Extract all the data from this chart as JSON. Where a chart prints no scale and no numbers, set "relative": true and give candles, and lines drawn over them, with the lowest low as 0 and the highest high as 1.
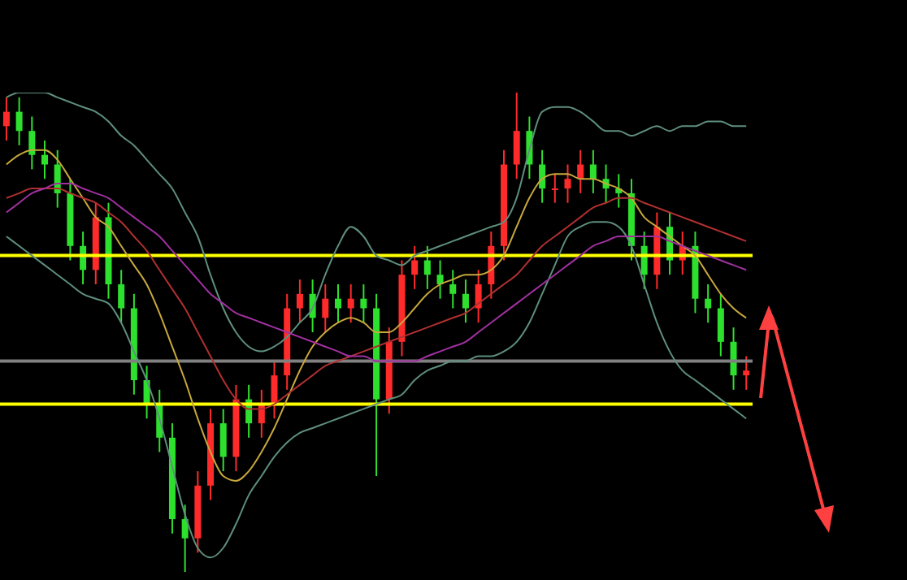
{
  "chart_data": {
    "type": "candlestick",
    "relative": true,
    "categories": [
      null,
      null,
      null,
      null,
      null,
      null,
      null,
      null,
      null,
      null,
      null,
      null,
      null,
      null,
      null,
      null,
      null,
      null,
      null,
      null,
      null,
      null,
      null,
      null,
      null,
      null,
      null,
      null,
      null,
      null,
      null,
      null,
      null,
      null,
      null,
      null,
      null,
      null,
      null,
      null,
      null,
      null,
      null,
      null,
      null,
      null,
      null,
      null,
      null,
      null,
      null,
      null,
      null,
      null,
      null,
      null,
      null,
      null,
      null
    ],
    "ohlc": [
      [
        0.93,
        0.99,
        0.9,
        0.96
      ],
      [
        0.96,
        0.99,
        0.89,
        0.92
      ],
      [
        0.92,
        0.95,
        0.84,
        0.87
      ],
      [
        0.87,
        0.9,
        0.82,
        0.85
      ],
      [
        0.85,
        0.88,
        0.76,
        0.79
      ],
      [
        0.79,
        0.82,
        0.65,
        0.68
      ],
      [
        0.68,
        0.71,
        0.6,
        0.63
      ],
      [
        0.63,
        0.77,
        0.6,
        0.74
      ],
      [
        0.74,
        0.77,
        0.57,
        0.6
      ],
      [
        0.6,
        0.63,
        0.52,
        0.55
      ],
      [
        0.55,
        0.58,
        0.37,
        0.4
      ],
      [
        0.4,
        0.43,
        0.32,
        0.35
      ],
      [
        0.35,
        0.38,
        0.25,
        0.28
      ],
      [
        0.28,
        0.31,
        0.08,
        0.11
      ],
      [
        0.11,
        0.14,
        0,
        0.07
      ],
      [
        0.07,
        0.21,
        0.04,
        0.18
      ],
      [
        0.18,
        0.34,
        0.15,
        0.31
      ],
      [
        0.31,
        0.34,
        0.21,
        0.24
      ],
      [
        0.24,
        0.39,
        0.21,
        0.36
      ],
      [
        0.36,
        0.39,
        0.28,
        0.31
      ],
      [
        0.31,
        0.38,
        0.28,
        0.35
      ],
      [
        0.35,
        0.44,
        0.32,
        0.41
      ],
      [
        0.41,
        0.58,
        0.38,
        0.55
      ],
      [
        0.55,
        0.61,
        0.52,
        0.58
      ],
      [
        0.58,
        0.61,
        0.5,
        0.53
      ],
      [
        0.53,
        0.6,
        0.5,
        0.57
      ],
      [
        0.57,
        0.6,
        0.52,
        0.55
      ],
      [
        0.55,
        0.6,
        0.52,
        0.57
      ],
      [
        0.57,
        0.6,
        0.52,
        0.55
      ],
      [
        0.55,
        0.58,
        0.2,
        0.36
      ],
      [
        0.36,
        0.51,
        0.33,
        0.48
      ],
      [
        0.48,
        0.65,
        0.45,
        0.62
      ],
      [
        0.62,
        0.68,
        0.59,
        0.65
      ],
      [
        0.65,
        0.68,
        0.59,
        0.62
      ],
      [
        0.62,
        0.65,
        0.57,
        0.6
      ],
      [
        0.6,
        0.63,
        0.55,
        0.58
      ],
      [
        0.58,
        0.61,
        0.52,
        0.55
      ],
      [
        0.55,
        0.63,
        0.52,
        0.6
      ],
      [
        0.6,
        0.71,
        0.57,
        0.68
      ],
      [
        0.68,
        0.88,
        0.65,
        0.85
      ],
      [
        0.85,
        1,
        0.82,
        0.92
      ],
      [
        0.92,
        0.95,
        0.82,
        0.85
      ],
      [
        0.85,
        0.88,
        0.77,
        0.8
      ],
      [
        0.8,
        0.83,
        0.77,
        0.8
      ],
      [
        0.8,
        0.85,
        0.77,
        0.82
      ],
      [
        0.82,
        0.88,
        0.79,
        0.85
      ],
      [
        0.85,
        0.88,
        0.79,
        0.82
      ],
      [
        0.82,
        0.85,
        0.77,
        0.8
      ],
      [
        0.8,
        0.83,
        0.76,
        0.79
      ],
      [
        0.79,
        0.82,
        0.65,
        0.68
      ],
      [
        0.68,
        0.71,
        0.59,
        0.62
      ],
      [
        0.62,
        0.75,
        0.59,
        0.72
      ],
      [
        0.72,
        0.75,
        0.62,
        0.65
      ],
      [
        0.65,
        0.71,
        0.62,
        0.68
      ],
      [
        0.68,
        0.71,
        0.54,
        0.57
      ],
      [
        0.57,
        0.6,
        0.52,
        0.55
      ],
      [
        0.55,
        0.58,
        0.45,
        0.48
      ],
      [
        0.48,
        0.51,
        0.38,
        0.41
      ],
      [
        0.41,
        0.45,
        0.38,
        0.42
      ]
    ],
    "series": [
      {
        "type": "line",
        "color": "#5e8f7c",
        "values": [
          0.99,
          1.0,
          1.0,
          1.0,
          0.99,
          0.98,
          0.97,
          0.96,
          0.94,
          0.91,
          0.89,
          0.86,
          0.83,
          0.8,
          0.75,
          0.7,
          0.62,
          0.55,
          0.5,
          0.47,
          0.46,
          0.47,
          0.49,
          0.52,
          0.55,
          0.62,
          0.68,
          0.72,
          0.7,
          0.66,
          0.65,
          0.64,
          0.66,
          0.67,
          0.68,
          0.69,
          0.7,
          0.71,
          0.72,
          0.73,
          0.78,
          0.88,
          0.96,
          0.97,
          0.97,
          0.96,
          0.94,
          0.92,
          0.92,
          0.91,
          0.92,
          0.93,
          0.92,
          0.93,
          0.93,
          0.94,
          0.94,
          0.93,
          0.93
        ]
      },
      {
        "type": "line",
        "color": "#5e8f7c",
        "values": [
          0.7,
          0.68,
          0.66,
          0.64,
          0.62,
          0.6,
          0.58,
          0.57,
          0.56,
          0.52,
          0.46,
          0.4,
          0.32,
          0.22,
          0.12,
          0.05,
          0.03,
          0.05,
          0.1,
          0.16,
          0.2,
          0.24,
          0.27,
          0.29,
          0.3,
          0.31,
          0.32,
          0.33,
          0.34,
          0.35,
          0.36,
          0.37,
          0.4,
          0.42,
          0.43,
          0.44,
          0.44,
          0.45,
          0.45,
          0.46,
          0.48,
          0.52,
          0.58,
          0.64,
          0.7,
          0.72,
          0.73,
          0.73,
          0.72,
          0.68,
          0.6,
          0.52,
          0.46,
          0.42,
          0.4,
          0.38,
          0.36,
          0.34,
          0.32
        ]
      },
      {
        "type": "line",
        "color": "#c8a83c",
        "values": [
          0.85,
          0.87,
          0.88,
          0.88,
          0.86,
          0.82,
          0.78,
          0.74,
          0.72,
          0.68,
          0.64,
          0.6,
          0.54,
          0.47,
          0.4,
          0.32,
          0.25,
          0.2,
          0.19,
          0.21,
          0.25,
          0.3,
          0.36,
          0.42,
          0.47,
          0.5,
          0.52,
          0.53,
          0.52,
          0.5,
          0.5,
          0.52,
          0.55,
          0.58,
          0.6,
          0.61,
          0.62,
          0.62,
          0.63,
          0.66,
          0.72,
          0.78,
          0.82,
          0.83,
          0.83,
          0.82,
          0.82,
          0.81,
          0.8,
          0.78,
          0.74,
          0.72,
          0.7,
          0.68,
          0.66,
          0.62,
          0.58,
          0.55,
          0.53
        ]
      },
      {
        "type": "line",
        "color": "#b03030",
        "values": [
          0.78,
          0.79,
          0.8,
          0.8,
          0.8,
          0.79,
          0.78,
          0.77,
          0.75,
          0.73,
          0.7,
          0.67,
          0.63,
          0.59,
          0.55,
          0.5,
          0.45,
          0.4,
          0.36,
          0.34,
          0.34,
          0.35,
          0.37,
          0.39,
          0.41,
          0.43,
          0.44,
          0.45,
          0.46,
          0.47,
          0.48,
          0.49,
          0.5,
          0.51,
          0.52,
          0.53,
          0.54,
          0.56,
          0.58,
          0.6,
          0.62,
          0.65,
          0.68,
          0.7,
          0.72,
          0.74,
          0.76,
          0.77,
          0.78,
          0.78,
          0.77,
          0.76,
          0.75,
          0.74,
          0.73,
          0.72,
          0.71,
          0.7,
          0.69
        ]
      },
      {
        "type": "line",
        "color": "#a030a0",
        "values": [
          0.75,
          0.77,
          0.79,
          0.8,
          0.81,
          0.81,
          0.8,
          0.79,
          0.78,
          0.76,
          0.74,
          0.72,
          0.7,
          0.67,
          0.64,
          0.61,
          0.58,
          0.56,
          0.54,
          0.53,
          0.52,
          0.51,
          0.5,
          0.49,
          0.48,
          0.47,
          0.46,
          0.45,
          0.45,
          0.44,
          0.44,
          0.44,
          0.44,
          0.45,
          0.46,
          0.47,
          0.48,
          0.5,
          0.52,
          0.54,
          0.56,
          0.58,
          0.6,
          0.62,
          0.64,
          0.66,
          0.68,
          0.69,
          0.7,
          0.7,
          0.7,
          0.7,
          0.69,
          0.68,
          0.67,
          0.66,
          0.65,
          0.64,
          0.63
        ]
      }
    ],
    "ref_lines": [
      {
        "axis": "y",
        "value": 0.66,
        "color": "#ffff00"
      },
      {
        "axis": "y",
        "value": 0.35,
        "color": "#ffff00"
      },
      {
        "axis": "y",
        "value": 0.44,
        "color": "#808080"
      }
    ]
  }
}
